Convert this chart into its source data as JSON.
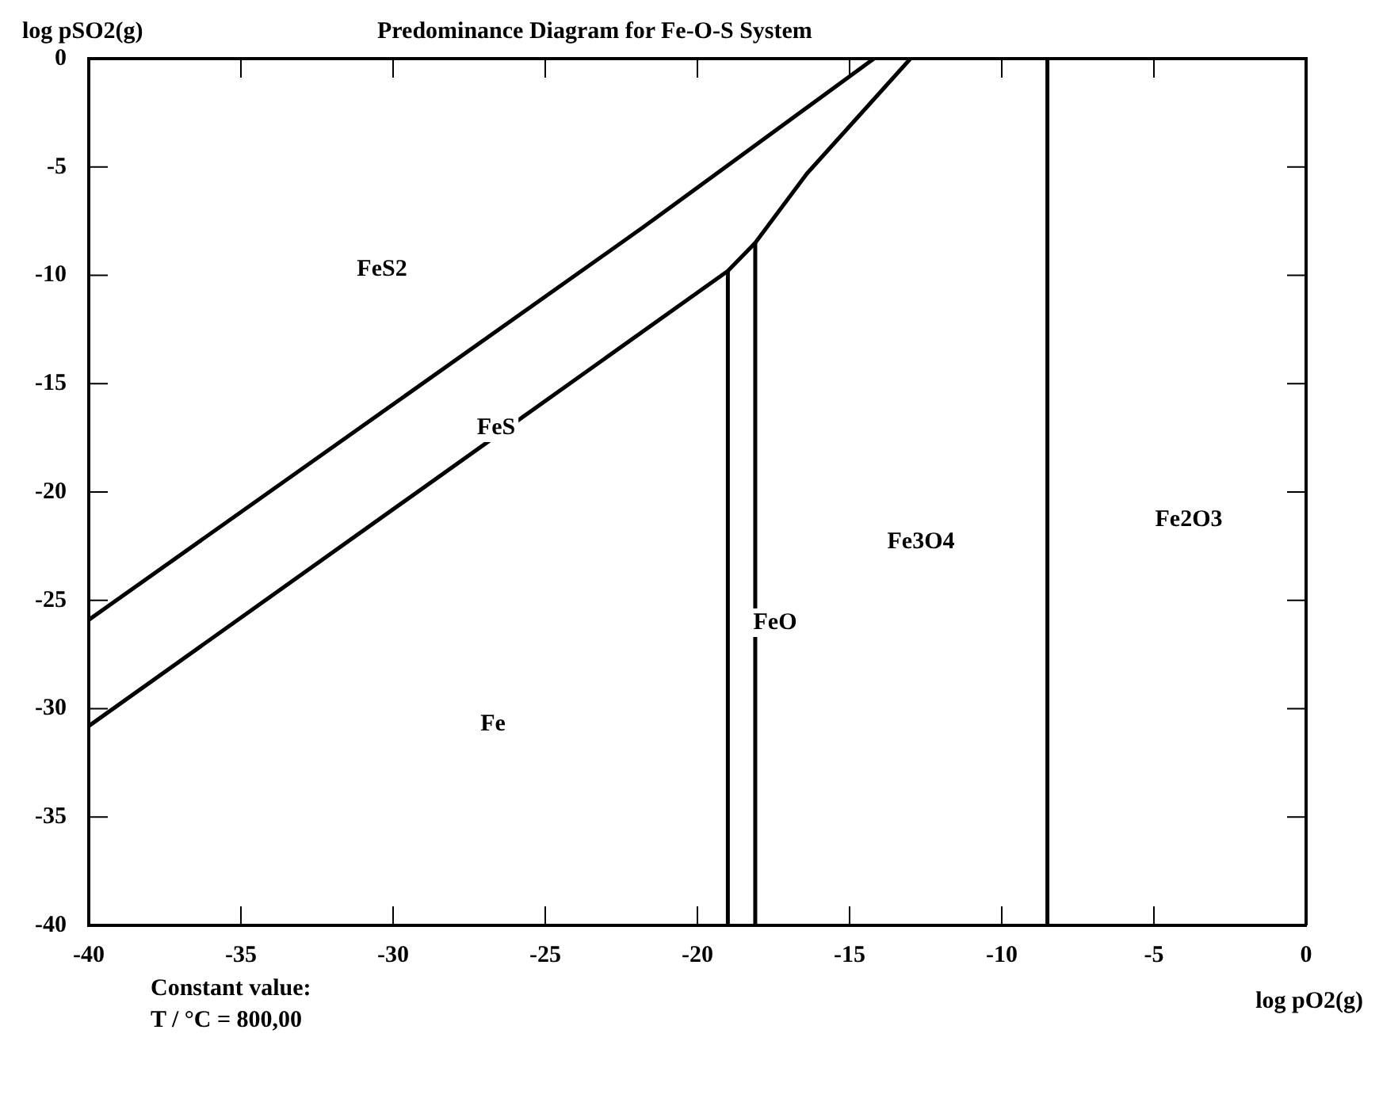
{
  "chart_data": {
    "type": "line",
    "title": "Predominance Diagram for Fe-O-S System",
    "xlabel": "log pO2(g)",
    "ylabel": "log pSO2(g)",
    "xlim": [
      -40,
      0
    ],
    "ylim": [
      -40,
      0
    ],
    "xticks": [
      -40,
      -35,
      -30,
      -25,
      -20,
      -15,
      -10,
      -5,
      0
    ],
    "yticks": [
      -40,
      -35,
      -30,
      -25,
      -20,
      -15,
      -10,
      -5,
      0
    ],
    "grid": false,
    "legend": false,
    "marker": "none",
    "line_style": "solid",
    "series": [
      {
        "color": "#000000",
        "x": [
          -40,
          -21.8,
          -14.2
        ],
        "values": [
          -25.9,
          -7.8,
          0
        ]
      },
      {
        "color": "#000000",
        "x": [
          -40,
          -19,
          -18.1,
          -16.4,
          -13
        ],
        "values": [
          -30.8,
          -9.8,
          -8.5,
          -5.3,
          0
        ]
      },
      {
        "color": "#000000",
        "x": [
          -19,
          -19
        ],
        "values": [
          -40,
          -9.8
        ]
      },
      {
        "color": "#000000",
        "x": [
          -18.1,
          -18.1
        ],
        "values": [
          -40,
          -8.5
        ]
      },
      {
        "color": "#000000",
        "x": [
          -8.5,
          -8.5
        ],
        "values": [
          -40,
          0
        ]
      }
    ],
    "annotations": [
      "FeS2",
      "FeS",
      "Fe",
      "FeO",
      "Fe3O4",
      "Fe2O3",
      "Constant value:",
      "T / °C = 800,00"
    ]
  }
}
